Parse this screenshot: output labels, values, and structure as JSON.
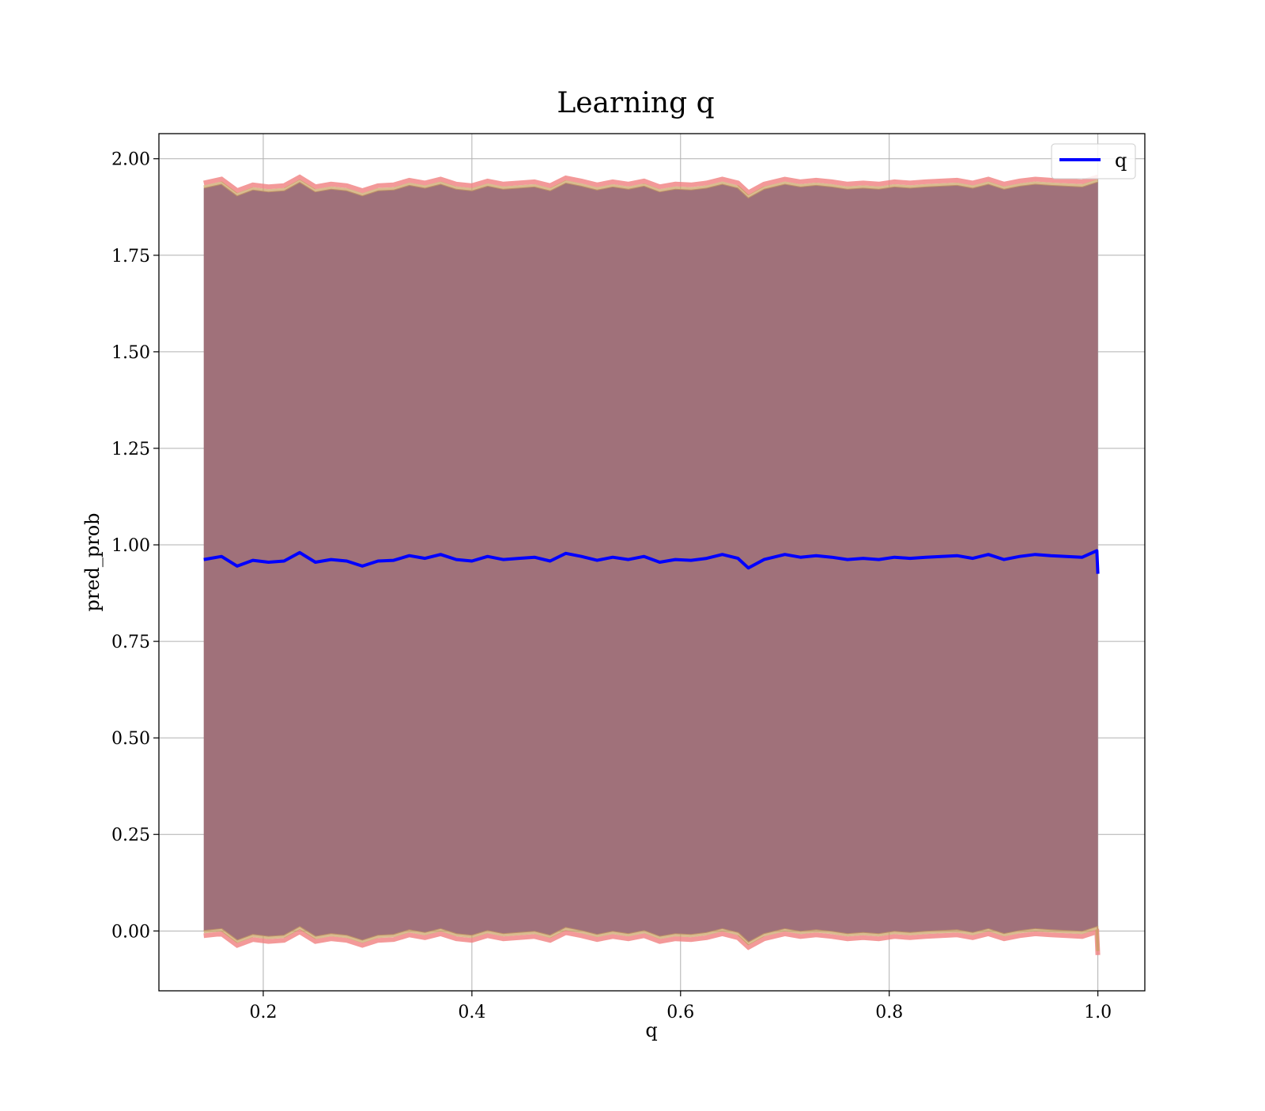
{
  "chart_data": {
    "type": "line",
    "title": "Learning q",
    "xlabel": "q",
    "ylabel": "pred_prob",
    "xlim": [
      0.1,
      1.045
    ],
    "ylim": [
      -0.155,
      2.065
    ],
    "xticks": [
      "0.2",
      "0.4",
      "0.6",
      "0.8",
      "1.0"
    ],
    "xtick_values": [
      0.2,
      0.4,
      0.6,
      0.8,
      1.0
    ],
    "yticks": [
      "0.00",
      "0.25",
      "0.50",
      "0.75",
      "1.00",
      "1.25",
      "1.50",
      "1.75",
      "2.00"
    ],
    "ytick_values": [
      0.0,
      0.25,
      0.5,
      0.75,
      1.0,
      1.25,
      1.5,
      1.75,
      2.0
    ],
    "grid": true,
    "legend": {
      "placement": "top-right",
      "entries": [
        "q"
      ]
    },
    "colors": {
      "line": "#0000ff",
      "band_fill": "#a0717a",
      "band_edge": "#f08080",
      "band_edge_inner": "#c9a060",
      "axes": "#000000",
      "grid": "#b0b0b0"
    },
    "series": [
      {
        "name": "q",
        "x": [
          0.143,
          0.16,
          0.175,
          0.19,
          0.205,
          0.22,
          0.235,
          0.25,
          0.265,
          0.28,
          0.295,
          0.31,
          0.325,
          0.34,
          0.355,
          0.37,
          0.385,
          0.4,
          0.415,
          0.43,
          0.445,
          0.46,
          0.475,
          0.49,
          0.505,
          0.52,
          0.535,
          0.55,
          0.565,
          0.58,
          0.595,
          0.61,
          0.625,
          0.64,
          0.655,
          0.665,
          0.68,
          0.7,
          0.715,
          0.73,
          0.745,
          0.76,
          0.775,
          0.79,
          0.805,
          0.82,
          0.835,
          0.85,
          0.865,
          0.88,
          0.895,
          0.91,
          0.925,
          0.94,
          0.955,
          0.97,
          0.985,
          0.999,
          1.0
        ],
        "y": [
          0.962,
          0.97,
          0.945,
          0.96,
          0.955,
          0.958,
          0.98,
          0.955,
          0.962,
          0.958,
          0.945,
          0.958,
          0.96,
          0.972,
          0.965,
          0.975,
          0.962,
          0.958,
          0.97,
          0.962,
          0.965,
          0.968,
          0.958,
          0.978,
          0.97,
          0.96,
          0.968,
          0.962,
          0.97,
          0.955,
          0.962,
          0.96,
          0.965,
          0.975,
          0.965,
          0.94,
          0.962,
          0.975,
          0.968,
          0.972,
          0.968,
          0.962,
          0.965,
          0.962,
          0.968,
          0.965,
          0.968,
          0.97,
          0.972,
          0.965,
          0.975,
          0.962,
          0.97,
          0.975,
          0.972,
          0.97,
          0.968,
          0.985,
          0.925
        ]
      }
    ],
    "band": {
      "name": "",
      "x": [
        0.143,
        0.16,
        0.175,
        0.19,
        0.205,
        0.22,
        0.235,
        0.25,
        0.265,
        0.28,
        0.295,
        0.31,
        0.325,
        0.34,
        0.355,
        0.37,
        0.385,
        0.4,
        0.415,
        0.43,
        0.445,
        0.46,
        0.475,
        0.49,
        0.505,
        0.52,
        0.535,
        0.55,
        0.565,
        0.58,
        0.595,
        0.61,
        0.625,
        0.64,
        0.655,
        0.665,
        0.68,
        0.7,
        0.715,
        0.73,
        0.745,
        0.76,
        0.775,
        0.79,
        0.805,
        0.82,
        0.835,
        0.85,
        0.865,
        0.88,
        0.895,
        0.91,
        0.925,
        0.94,
        0.955,
        0.97,
        0.985,
        0.999,
        1.0
      ],
      "upper": [
        1.925,
        1.935,
        1.905,
        1.92,
        1.915,
        1.918,
        1.94,
        1.915,
        1.922,
        1.918,
        1.905,
        1.918,
        1.92,
        1.932,
        1.925,
        1.935,
        1.922,
        1.918,
        1.93,
        1.922,
        1.925,
        1.928,
        1.918,
        1.938,
        1.93,
        1.92,
        1.928,
        1.922,
        1.93,
        1.915,
        1.922,
        1.92,
        1.925,
        1.935,
        1.925,
        1.9,
        1.922,
        1.935,
        1.928,
        1.932,
        1.928,
        1.922,
        1.925,
        1.922,
        1.928,
        1.925,
        1.928,
        1.93,
        1.932,
        1.925,
        1.935,
        1.922,
        1.93,
        1.935,
        1.932,
        1.93,
        1.928,
        1.94,
        1.94
      ],
      "lower": [
        0.0,
        0.005,
        -0.025,
        -0.01,
        -0.015,
        -0.012,
        0.01,
        -0.015,
        -0.008,
        -0.012,
        -0.025,
        -0.012,
        -0.01,
        0.002,
        -0.005,
        0.005,
        -0.008,
        -0.012,
        0.0,
        -0.008,
        -0.005,
        -0.002,
        -0.012,
        0.008,
        0.0,
        -0.01,
        -0.002,
        -0.008,
        0.0,
        -0.015,
        -0.008,
        -0.01,
        -0.005,
        0.005,
        -0.005,
        -0.03,
        -0.008,
        0.005,
        -0.002,
        0.002,
        -0.002,
        -0.008,
        -0.005,
        -0.008,
        -0.002,
        -0.005,
        -0.002,
        0.0,
        0.002,
        -0.005,
        0.005,
        -0.008,
        0.0,
        0.005,
        0.002,
        0.0,
        -0.002,
        0.01,
        -0.05
      ]
    }
  }
}
